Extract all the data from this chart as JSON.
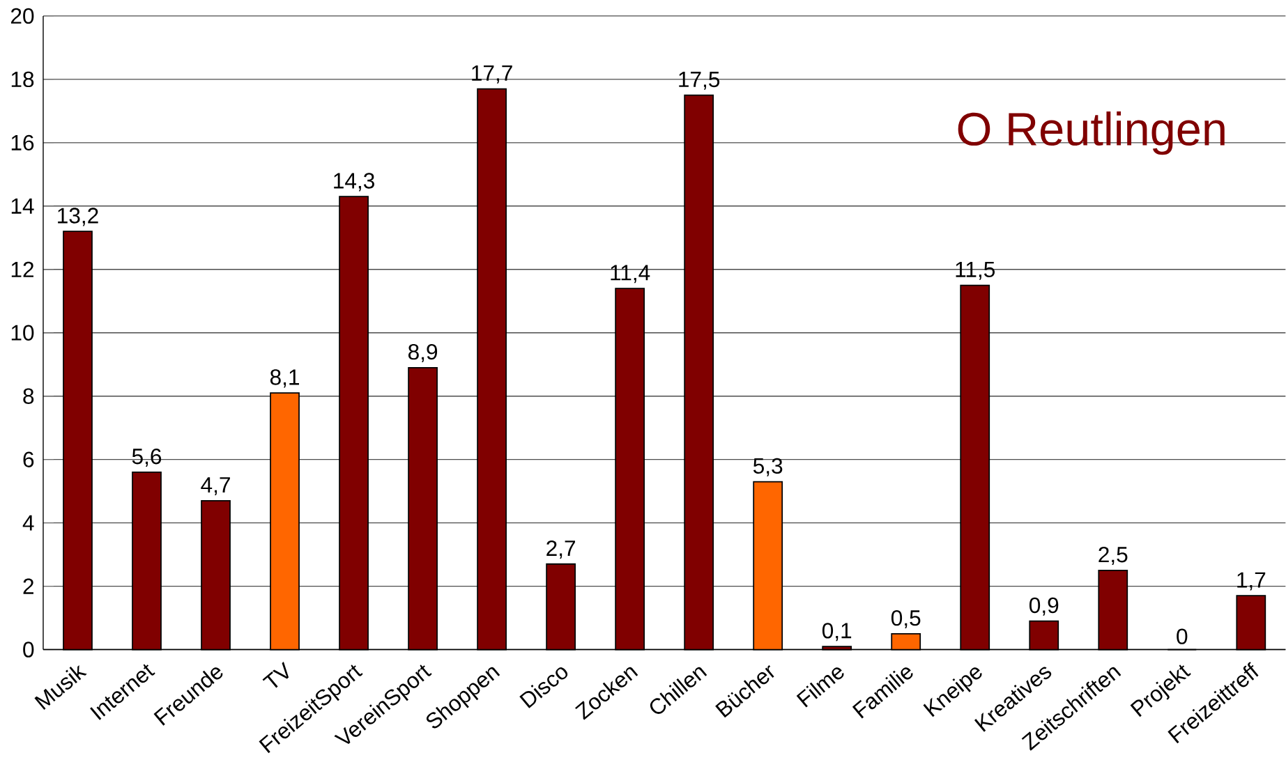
{
  "chart_data": {
    "type": "bar",
    "categories": [
      "Musik",
      "Internet",
      "Freunde",
      "TV",
      "FreizeitSport",
      "VereinSport",
      "Shoppen",
      "Disco",
      "Zocken",
      "Chillen",
      "Bücher",
      "Filme",
      "Familie",
      "Kneipe",
      "Kreatives",
      "Zeitschriften",
      "Projekt",
      "Freizeittreff"
    ],
    "values": [
      13.2,
      5.6,
      4.7,
      8.1,
      14.3,
      8.9,
      17.7,
      2.7,
      11.4,
      17.5,
      5.3,
      0.1,
      0.5,
      11.5,
      0.9,
      2.5,
      0,
      1.7
    ],
    "value_labels": [
      "13,2",
      "5,6",
      "4,7",
      "8,1",
      "14,3",
      "8,9",
      "17,7",
      "2,7",
      "11,4",
      "17,5",
      "5,3",
      "0,1",
      "0,5",
      "11,5",
      "0,9",
      "2,5",
      "0",
      "1,7"
    ],
    "colors": [
      "#800000",
      "#800000",
      "#800000",
      "#ff6600",
      "#800000",
      "#800000",
      "#800000",
      "#800000",
      "#800000",
      "#800000",
      "#ff6600",
      "#800000",
      "#ff6600",
      "#800000",
      "#800000",
      "#800000",
      "#800000",
      "#800000"
    ],
    "ylim": [
      0,
      20
    ],
    "yticks": [
      0,
      2,
      4,
      6,
      8,
      10,
      12,
      14,
      16,
      18,
      20
    ],
    "grid": "y",
    "annotations": [
      "O Reutlingen"
    ]
  }
}
